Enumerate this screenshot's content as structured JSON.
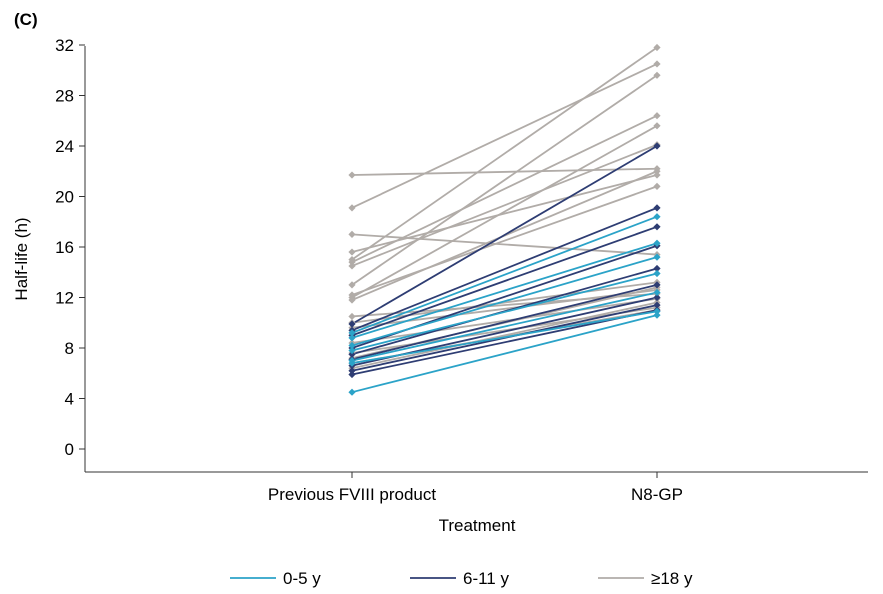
{
  "chart_data": {
    "type": "line",
    "panel_label": "(C)",
    "xlabel": "Treatment",
    "ylabel": "Half-life (h)",
    "categories": [
      "Previous FVIII product",
      "N8-GP"
    ],
    "ylim": [
      0,
      32
    ],
    "yticks": [
      "0",
      "4",
      "8",
      "12",
      "16",
      "20",
      "24",
      "28",
      "32"
    ],
    "grid": false,
    "legend_position": "bottom",
    "groups": [
      {
        "name": "0-5 y",
        "color": "#2ba3c8"
      },
      {
        "name": "6-11 y",
        "color": "#2e3d73"
      },
      {
        "name": "≥18 y",
        "color": "#b1aca8"
      }
    ],
    "series": [
      {
        "group": "≥18 y",
        "values": [
          21.7,
          22.2
        ]
      },
      {
        "group": "≥18 y",
        "values": [
          19.1,
          30.5
        ]
      },
      {
        "group": "≥18 y",
        "values": [
          17.0,
          15.4
        ]
      },
      {
        "group": "≥18 y",
        "values": [
          15.6,
          21.7
        ]
      },
      {
        "group": "≥18 y",
        "values": [
          15.0,
          31.8
        ]
      },
      {
        "group": "≥18 y",
        "values": [
          14.8,
          26.4
        ]
      },
      {
        "group": "≥18 y",
        "values": [
          14.5,
          24.1
        ]
      },
      {
        "group": "≥18 y",
        "values": [
          13.0,
          29.6
        ]
      },
      {
        "group": "≥18 y",
        "values": [
          12.2,
          20.8
        ]
      },
      {
        "group": "≥18 y",
        "values": [
          12.0,
          25.6
        ]
      },
      {
        "group": "≥18 y",
        "values": [
          11.8,
          22.0
        ]
      },
      {
        "group": "≥18 y",
        "values": [
          10.5,
          12.3
        ]
      },
      {
        "group": "≥18 y",
        "values": [
          10.0,
          13.2
        ]
      },
      {
        "group": "≥18 y",
        "values": [
          9.6,
          12.6
        ]
      },
      {
        "group": "≥18 y",
        "values": [
          8.4,
          11.9
        ]
      },
      {
        "group": "≥18 y",
        "values": [
          7.6,
          11.2
        ]
      },
      {
        "group": "≥18 y",
        "values": [
          7.2,
          12.8
        ]
      },
      {
        "group": "≥18 y",
        "values": [
          6.8,
          11.0
        ]
      },
      {
        "group": "≥18 y",
        "values": [
          6.4,
          11.6
        ]
      },
      {
        "group": "6-11 y",
        "values": [
          9.9,
          24.0
        ]
      },
      {
        "group": "6-11 y",
        "values": [
          9.4,
          19.1
        ]
      },
      {
        "group": "6-11 y",
        "values": [
          9.0,
          17.6
        ]
      },
      {
        "group": "6-11 y",
        "values": [
          8.0,
          16.1
        ]
      },
      {
        "group": "6-11 y",
        "values": [
          7.5,
          14.3
        ]
      },
      {
        "group": "6-11 y",
        "values": [
          7.1,
          13.0
        ]
      },
      {
        "group": "6-11 y",
        "values": [
          6.6,
          12.0
        ]
      },
      {
        "group": "6-11 y",
        "values": [
          6.2,
          11.4
        ]
      },
      {
        "group": "6-11 y",
        "values": [
          5.9,
          11.0
        ]
      },
      {
        "group": "0-5 y",
        "values": [
          9.2,
          18.4
        ]
      },
      {
        "group": "0-5 y",
        "values": [
          8.8,
          16.3
        ]
      },
      {
        "group": "0-5 y",
        "values": [
          8.2,
          15.2
        ]
      },
      {
        "group": "0-5 y",
        "values": [
          7.8,
          13.9
        ]
      },
      {
        "group": "0-5 y",
        "values": [
          7.0,
          12.4
        ]
      },
      {
        "group": "0-5 y",
        "values": [
          6.8,
          10.9
        ]
      },
      {
        "group": "0-5 y",
        "values": [
          4.5,
          10.6
        ]
      }
    ]
  }
}
